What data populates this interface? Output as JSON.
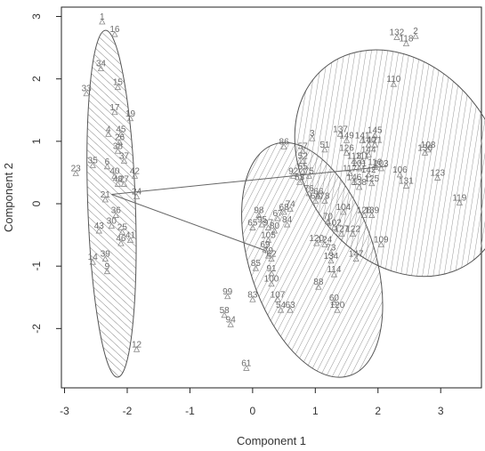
{
  "chart_data": {
    "type": "scatter",
    "xlabel": "Component 1",
    "ylabel": "Component 2",
    "xlim": [
      -3.05,
      3.65
    ],
    "ylim": [
      -2.95,
      3.15
    ],
    "xticks": [
      -3,
      -2,
      -1,
      0,
      1,
      2,
      3
    ],
    "yticks": [
      -2,
      -1,
      0,
      1,
      2,
      3
    ],
    "grid": false,
    "colors": {
      "ellipse_stroke": "#555555",
      "hatch": "#777777",
      "label": "#6a6a6a",
      "axis": "#333333"
    },
    "clusters": [
      {
        "center": [
          -2.25,
          0.0
        ],
        "semi_axis_x": 0.38,
        "semi_axis_y": 2.78,
        "angle_deg": -2,
        "hatch": "back"
      },
      {
        "center": [
          0.95,
          -0.9
        ],
        "semi_axis_x": 1.0,
        "semi_axis_y": 1.95,
        "angle_deg": -18,
        "hatch": "forward"
      },
      {
        "center": [
          2.35,
          0.65
        ],
        "semi_axis_x": 1.52,
        "semi_axis_y": 1.95,
        "angle_deg": -36,
        "hatch": "forward"
      }
    ],
    "connectors": [
      {
        "from": [
          -2.25,
          0.15
        ],
        "to": [
          2.15,
          0.6
        ]
      },
      {
        "from": [
          -2.25,
          0.15
        ],
        "to": [
          0.2,
          -0.75
        ]
      }
    ],
    "points": [
      {
        "label": "1",
        "x": -2.4,
        "y": 2.95
      },
      {
        "label": "16",
        "x": -2.2,
        "y": 2.75
      },
      {
        "label": "34",
        "x": -2.42,
        "y": 2.2
      },
      {
        "label": "33",
        "x": -2.65,
        "y": 1.8
      },
      {
        "label": "15",
        "x": -2.15,
        "y": 1.9
      },
      {
        "label": "17",
        "x": -2.2,
        "y": 1.5
      },
      {
        "label": "19",
        "x": -1.95,
        "y": 1.4
      },
      {
        "label": "4",
        "x": -2.3,
        "y": 1.15
      },
      {
        "label": "45",
        "x": -2.1,
        "y": 1.15
      },
      {
        "label": "26",
        "x": -2.12,
        "y": 1.02
      },
      {
        "label": "38",
        "x": -2.15,
        "y": 0.88
      },
      {
        "label": "23",
        "x": -2.82,
        "y": 0.52
      },
      {
        "label": "35",
        "x": -2.55,
        "y": 0.65
      },
      {
        "label": "6",
        "x": -2.32,
        "y": 0.63
      },
      {
        "label": "37",
        "x": -2.05,
        "y": 0.72
      },
      {
        "label": "40",
        "x": -2.2,
        "y": 0.48
      },
      {
        "label": "42",
        "x": -1.88,
        "y": 0.48
      },
      {
        "label": "48",
        "x": -2.15,
        "y": 0.35
      },
      {
        "label": "27",
        "x": -2.05,
        "y": 0.35
      },
      {
        "label": "24",
        "x": -1.85,
        "y": 0.15
      },
      {
        "label": "21",
        "x": -2.35,
        "y": 0.1
      },
      {
        "label": "36",
        "x": -2.18,
        "y": -0.15
      },
      {
        "label": "43",
        "x": -2.45,
        "y": -0.4
      },
      {
        "label": "30",
        "x": -2.25,
        "y": -0.32
      },
      {
        "label": "25",
        "x": -2.08,
        "y": -0.42
      },
      {
        "label": "46",
        "x": -2.1,
        "y": -0.6
      },
      {
        "label": "41",
        "x": -1.95,
        "y": -0.55
      },
      {
        "label": "14",
        "x": -2.55,
        "y": -0.9
      },
      {
        "label": "39",
        "x": -2.35,
        "y": -0.85
      },
      {
        "label": "9",
        "x": -2.32,
        "y": -1.05
      },
      {
        "label": "12",
        "x": -1.85,
        "y": -2.3
      },
      {
        "label": "86",
        "x": 0.5,
        "y": 0.95
      },
      {
        "label": "57",
        "x": 0.8,
        "y": 0.88
      },
      {
        "label": "3",
        "x": 0.95,
        "y": 1.08
      },
      {
        "label": "51",
        "x": 1.15,
        "y": 0.9
      },
      {
        "label": "52",
        "x": 0.8,
        "y": 0.72
      },
      {
        "label": "55",
        "x": 0.8,
        "y": 0.55
      },
      {
        "label": "75",
        "x": 0.9,
        "y": 0.48
      },
      {
        "label": "53",
        "x": 0.75,
        "y": 0.38
      },
      {
        "label": "76",
        "x": 0.9,
        "y": 0.2
      },
      {
        "label": "66",
        "x": 1.05,
        "y": 0.15
      },
      {
        "label": "92",
        "x": 0.65,
        "y": 0.48
      },
      {
        "label": "78",
        "x": 1.15,
        "y": 0.08
      },
      {
        "label": "64",
        "x": 1.0,
        "y": 0.08
      },
      {
        "label": "68",
        "x": 0.5,
        "y": -0.1
      },
      {
        "label": "74",
        "x": 0.6,
        "y": -0.05
      },
      {
        "label": "98",
        "x": 0.1,
        "y": -0.15
      },
      {
        "label": "67",
        "x": 0.4,
        "y": -0.2
      },
      {
        "label": "95",
        "x": 0.15,
        "y": -0.3
      },
      {
        "label": "65",
        "x": 0.0,
        "y": -0.35
      },
      {
        "label": "97",
        "x": 0.25,
        "y": -0.35
      },
      {
        "label": "80",
        "x": 0.35,
        "y": -0.4
      },
      {
        "label": "84",
        "x": 0.55,
        "y": -0.3
      },
      {
        "label": "70",
        "x": 1.2,
        "y": -0.25
      },
      {
        "label": "102",
        "x": 1.3,
        "y": -0.35
      },
      {
        "label": "104",
        "x": 1.45,
        "y": -0.1
      },
      {
        "label": "128",
        "x": 1.78,
        "y": -0.15
      },
      {
        "label": "139",
        "x": 1.9,
        "y": -0.15
      },
      {
        "label": "127",
        "x": 1.42,
        "y": -0.45
      },
      {
        "label": "122",
        "x": 1.6,
        "y": -0.45
      },
      {
        "label": "109",
        "x": 2.05,
        "y": -0.62
      },
      {
        "label": "120",
        "x": 1.02,
        "y": -0.6
      },
      {
        "label": "124",
        "x": 1.15,
        "y": -0.62
      },
      {
        "label": "73",
        "x": 1.25,
        "y": -0.75
      },
      {
        "label": "147",
        "x": 1.65,
        "y": -0.85
      },
      {
        "label": "134",
        "x": 1.25,
        "y": -0.88
      },
      {
        "label": "105",
        "x": 0.25,
        "y": -0.55
      },
      {
        "label": "69",
        "x": 0.2,
        "y": -0.7
      },
      {
        "label": "79",
        "x": 0.25,
        "y": -0.8
      },
      {
        "label": "62",
        "x": 0.3,
        "y": -0.85
      },
      {
        "label": "85",
        "x": 0.05,
        "y": -1.0
      },
      {
        "label": "91",
        "x": 0.3,
        "y": -1.08
      },
      {
        "label": "114",
        "x": 1.3,
        "y": -1.1
      },
      {
        "label": "100",
        "x": 0.3,
        "y": -1.25
      },
      {
        "label": "88",
        "x": 1.05,
        "y": -1.3
      },
      {
        "label": "99",
        "x": -0.4,
        "y": -1.45
      },
      {
        "label": "83",
        "x": 0.0,
        "y": -1.5
      },
      {
        "label": "107",
        "x": 0.4,
        "y": -1.5
      },
      {
        "label": "60",
        "x": 1.3,
        "y": -1.55
      },
      {
        "label": "54",
        "x": 0.45,
        "y": -1.67
      },
      {
        "label": "63",
        "x": 0.6,
        "y": -1.67
      },
      {
        "label": "120",
        "x": 1.35,
        "y": -1.67
      },
      {
        "label": "58",
        "x": -0.45,
        "y": -1.75
      },
      {
        "label": "94",
        "x": -0.35,
        "y": -1.9
      },
      {
        "label": "61",
        "x": -0.1,
        "y": -2.6
      },
      {
        "label": "132",
        "x": 2.3,
        "y": 2.7
      },
      {
        "label": "2",
        "x": 2.6,
        "y": 2.72
      },
      {
        "label": "118",
        "x": 2.45,
        "y": 2.6
      },
      {
        "label": "110",
        "x": 2.25,
        "y": 1.95
      },
      {
        "label": "137",
        "x": 1.4,
        "y": 1.15
      },
      {
        "label": "145",
        "x": 1.95,
        "y": 1.13
      },
      {
        "label": "149",
        "x": 1.5,
        "y": 1.05
      },
      {
        "label": "141",
        "x": 1.75,
        "y": 1.05
      },
      {
        "label": "140",
        "x": 1.85,
        "y": 0.98
      },
      {
        "label": "121",
        "x": 1.95,
        "y": 0.98
      },
      {
        "label": "144",
        "x": 1.85,
        "y": 0.82
      },
      {
        "label": "126",
        "x": 1.5,
        "y": 0.85
      },
      {
        "label": "113",
        "x": 1.62,
        "y": 0.72
      },
      {
        "label": "111",
        "x": 1.75,
        "y": 0.72
      },
      {
        "label": "101",
        "x": 1.7,
        "y": 0.6
      },
      {
        "label": "116",
        "x": 1.95,
        "y": 0.62
      },
      {
        "label": "117",
        "x": 1.55,
        "y": 0.52
      },
      {
        "label": "103",
        "x": 2.05,
        "y": 0.6
      },
      {
        "label": "106",
        "x": 2.35,
        "y": 0.5
      },
      {
        "label": "142",
        "x": 1.85,
        "y": 0.5
      },
      {
        "label": "146",
        "x": 1.62,
        "y": 0.38
      },
      {
        "label": "125",
        "x": 1.9,
        "y": 0.36
      },
      {
        "label": "138",
        "x": 1.7,
        "y": 0.3
      },
      {
        "label": "131",
        "x": 2.45,
        "y": 0.32
      },
      {
        "label": "123",
        "x": 2.95,
        "y": 0.45
      },
      {
        "label": "136",
        "x": 2.75,
        "y": 0.85
      },
      {
        "label": "108",
        "x": 2.8,
        "y": 0.9
      },
      {
        "label": "119",
        "x": 3.3,
        "y": 0.05
      }
    ]
  }
}
